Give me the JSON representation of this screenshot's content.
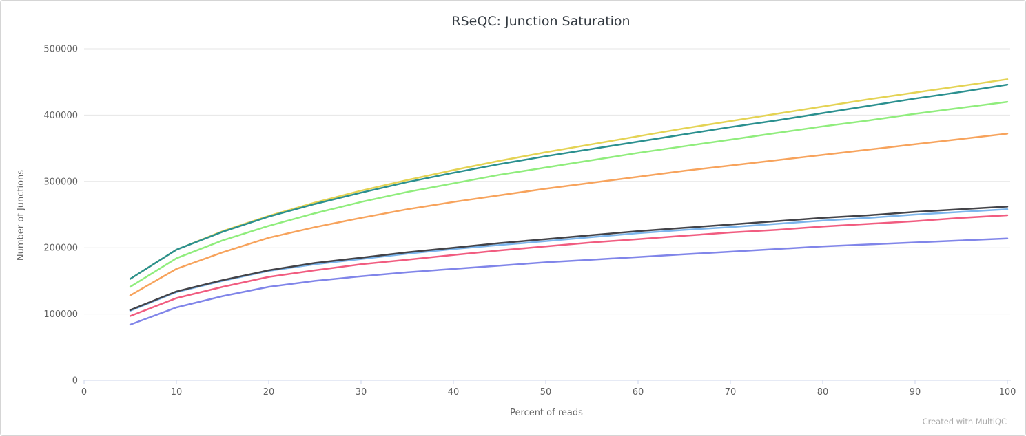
{
  "footer": {
    "credit": "Created with MultiQC"
  },
  "chart_data": {
    "type": "line",
    "title": "RSeQC: Junction Saturation",
    "xlabel": "Percent of reads",
    "ylabel": "Number of Junctions",
    "xlim": [
      0,
      100
    ],
    "ylim": [
      0,
      500000
    ],
    "xticks": [
      0,
      10,
      20,
      30,
      40,
      50,
      60,
      70,
      80,
      90,
      100
    ],
    "yticks": [
      0,
      100000,
      200000,
      300000,
      400000,
      500000
    ],
    "grid": "horizontal-only",
    "legend": "none",
    "x": [
      5,
      10,
      15,
      20,
      25,
      30,
      35,
      40,
      45,
      50,
      55,
      60,
      65,
      70,
      75,
      80,
      85,
      90,
      95,
      100
    ],
    "series": [
      {
        "id": "sample-lightblue",
        "color": "#7cb5ec",
        "values": [
          105000,
          133000,
          150000,
          165000,
          175000,
          183000,
          191000,
          198000,
          204000,
          210000,
          216000,
          222000,
          227000,
          231000,
          236000,
          241000,
          245000,
          250000,
          254000,
          258000
        ]
      },
      {
        "id": "sample-darkgray",
        "color": "#434348",
        "values": [
          106000,
          134000,
          151000,
          166000,
          177000,
          185000,
          193000,
          200000,
          207000,
          213000,
          219000,
          225000,
          230000,
          235000,
          240000,
          245000,
          249000,
          254000,
          258000,
          262000
        ]
      },
      {
        "id": "sample-green",
        "color": "#90ed7d",
        "values": [
          141000,
          184000,
          211000,
          233000,
          252000,
          269000,
          284000,
          297000,
          310000,
          321000,
          332000,
          343000,
          353000,
          363000,
          373000,
          383000,
          392000,
          402000,
          411000,
          420000
        ]
      },
      {
        "id": "sample-orange",
        "color": "#f7a35c",
        "values": [
          128000,
          168000,
          193000,
          215000,
          231000,
          245000,
          258000,
          269000,
          279000,
          289000,
          298000,
          307000,
          316000,
          324000,
          332000,
          340000,
          348000,
          356000,
          364000,
          372000
        ]
      },
      {
        "id": "sample-purple",
        "color": "#8085e9",
        "values": [
          84000,
          110000,
          127000,
          141000,
          150000,
          157000,
          163000,
          168000,
          173000,
          178000,
          182000,
          186000,
          190000,
          194000,
          198000,
          202000,
          205000,
          208000,
          211000,
          214000
        ]
      },
      {
        "id": "sample-pink",
        "color": "#f15c80",
        "values": [
          97000,
          124000,
          141000,
          156000,
          166000,
          175000,
          182000,
          189000,
          196000,
          202000,
          208000,
          213000,
          218000,
          223000,
          227000,
          232000,
          236000,
          240000,
          245000,
          249000
        ]
      },
      {
        "id": "sample-yellow",
        "color": "#e4d354",
        "values": [
          153000,
          197000,
          225000,
          248000,
          268000,
          286000,
          302000,
          317000,
          331000,
          344000,
          356000,
          368000,
          380000,
          391000,
          402000,
          413000,
          424000,
          434000,
          444000,
          454000
        ]
      },
      {
        "id": "sample-teal",
        "color": "#2b908f",
        "values": [
          153000,
          197000,
          224000,
          247000,
          266000,
          283000,
          299000,
          313000,
          326000,
          338000,
          349000,
          360000,
          371000,
          382000,
          392000,
          403000,
          414000,
          425000,
          435000,
          446000
        ]
      }
    ],
    "style": {
      "grid_color": "#e6e6e6",
      "axis_line_color": "#ccd6eb",
      "title_color": "#333a41",
      "tick_label_color": "#606060",
      "axis_title_color": "#666666",
      "credit_color": "#aaaaaa"
    }
  }
}
